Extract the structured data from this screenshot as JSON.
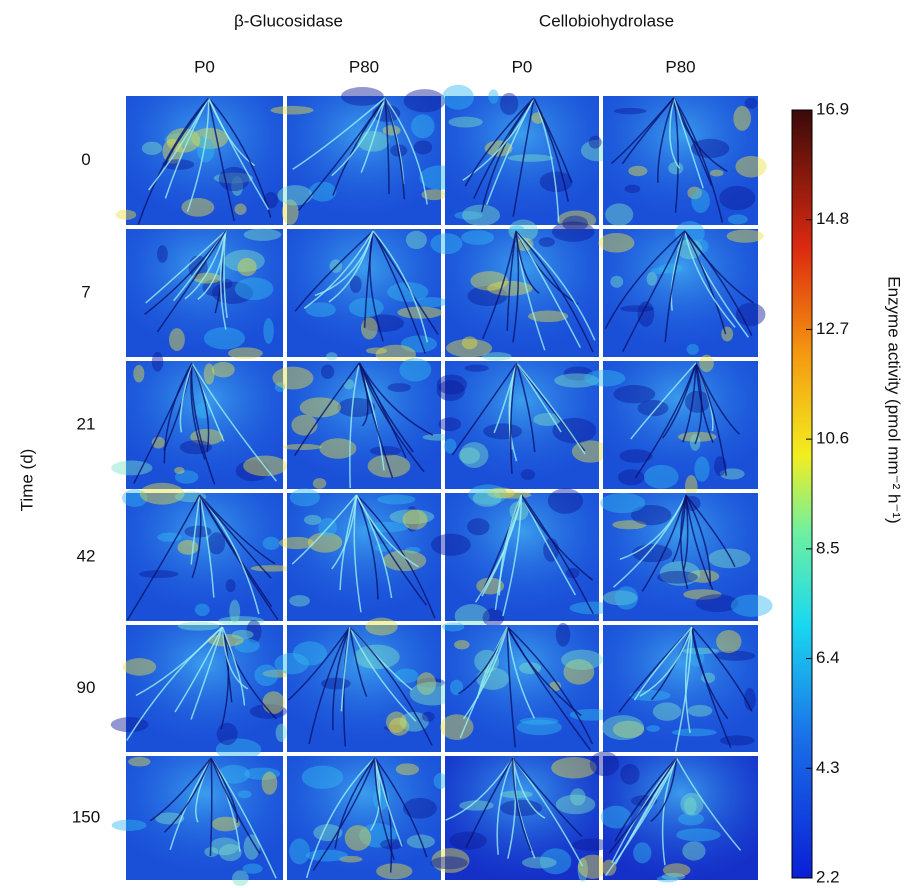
{
  "headers": [
    {
      "title": "β-Glucosidase",
      "columns": [
        "P0",
        "P80"
      ]
    },
    {
      "title": "Cellobiohydrolase",
      "columns": [
        "P0",
        "P80"
      ]
    }
  ],
  "row_axis_label": "Time (d)",
  "rows": [
    "0",
    "7",
    "21",
    "42",
    "90",
    "150"
  ],
  "colorbar": {
    "label": "Enzyme activity (pmol mm⁻² h⁻¹)",
    "lim": [
      2.2,
      16.9
    ],
    "ticks": [
      2.2,
      4.3,
      6.4,
      8.5,
      10.6,
      12.7,
      14.8,
      16.9
    ]
  }
}
